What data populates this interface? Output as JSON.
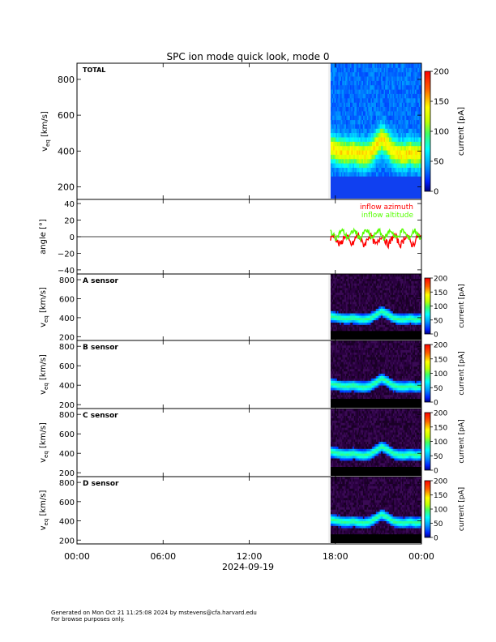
{
  "title": "SPC ion mode quick look, mode 0",
  "footer": {
    "line1": "Generated on Mon Oct 21 11:25:08 2024 by mstevens@cfa.harvard.edu",
    "line2": "For browse purposes only."
  },
  "chart_data": {
    "type": "heatmap",
    "time_axis": {
      "range": [
        "2024-09-19T00:00",
        "2024-09-20T00:00"
      ],
      "tick_labels": [
        "00:00",
        "06:00",
        "12:00",
        "18:00",
        "00:00"
      ],
      "date_label": "2024-09-19"
    },
    "data_start": "2024-09-19T17:40",
    "colorbar": {
      "label": "current [pA]",
      "range": [
        0,
        200
      ],
      "ticks": [
        "0",
        "50",
        "100",
        "150",
        "200"
      ]
    },
    "panels": [
      {
        "id": "total",
        "label": "TOTAL",
        "ylabel": "v_eq [km/s]",
        "ylim": [
          130,
          890
        ],
        "yticks": [
          "200",
          "400",
          "600",
          "800"
        ],
        "background": "blue",
        "peak_speed_kms": [
          420,
          405,
          395,
          390,
          400,
          385,
          380,
          395,
          430,
          470,
          440,
          400,
          385,
          380,
          395,
          380,
          390
        ],
        "speed_range_kms": [
          270,
          880
        ]
      },
      {
        "id": "angle",
        "ylabel": "angle [°]",
        "ylim": [
          -45,
          45
        ],
        "yticks": [
          "40",
          "20",
          "0",
          "−20",
          "−40"
        ],
        "legend": [
          "inflow azimuth",
          "inflow altitude"
        ],
        "series": [
          {
            "name": "inflow azimuth",
            "color": "#ff0000",
            "mean_deg": -4,
            "amplitude_deg": 9
          },
          {
            "name": "inflow altitude",
            "color": "#55ff00",
            "mean_deg": 3,
            "amplitude_deg": 7
          }
        ]
      },
      {
        "id": "a",
        "label": "A sensor",
        "ylabel": "v_eq [km/s]",
        "ylim": [
          160,
          860
        ],
        "yticks": [
          "200",
          "400",
          "600",
          "800"
        ],
        "background": "purple"
      },
      {
        "id": "b",
        "label": "B sensor",
        "ylabel": "v_eq [km/s]",
        "ylim": [
          160,
          860
        ],
        "yticks": [
          "200",
          "400",
          "600",
          "800"
        ],
        "background": "purple"
      },
      {
        "id": "c",
        "label": "C sensor",
        "ylabel": "v_eq [km/s]",
        "ylim": [
          160,
          860
        ],
        "yticks": [
          "200",
          "400",
          "600",
          "800"
        ],
        "background": "purple"
      },
      {
        "id": "d",
        "label": "D sensor",
        "ylabel": "v_eq [km/s]",
        "ylim": [
          160,
          860
        ],
        "yticks": [
          "200",
          "400",
          "600",
          "800"
        ],
        "background": "purple"
      }
    ]
  }
}
